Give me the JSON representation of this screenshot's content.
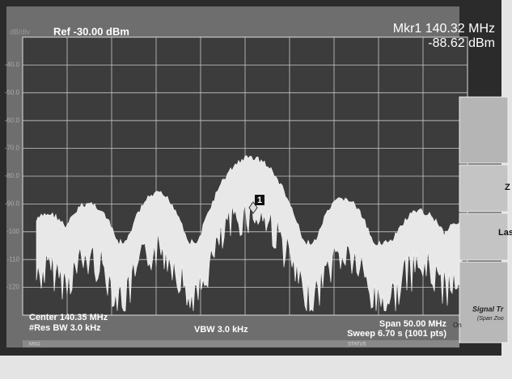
{
  "header": {
    "ref_level": "Ref -30.00 dBm",
    "marker_freq": "Mkr1 140.32 MHz",
    "marker_level": "-88.62 dBm",
    "scale": "dB/div"
  },
  "y_labels": [
    "-40.0",
    "-50.0",
    "-60.0",
    "-70.0",
    "-80.0",
    "-90.0",
    "-100",
    "-110",
    "-120"
  ],
  "marker_label": "1",
  "footer": {
    "center": "Center 140.35 MHz",
    "res_bw": "#Res BW 3.0 kHz",
    "vbw": "VBW 3.0 kHz",
    "span": "Span 50.00 MHz",
    "sweep": "Sweep  6.70 s (1001 pts)",
    "msg": "MSG",
    "status": "STATUS"
  },
  "softkeys": [
    "Z",
    "Las",
    "Signal Tr",
    "(Span Zoo",
    "On"
  ]
}
